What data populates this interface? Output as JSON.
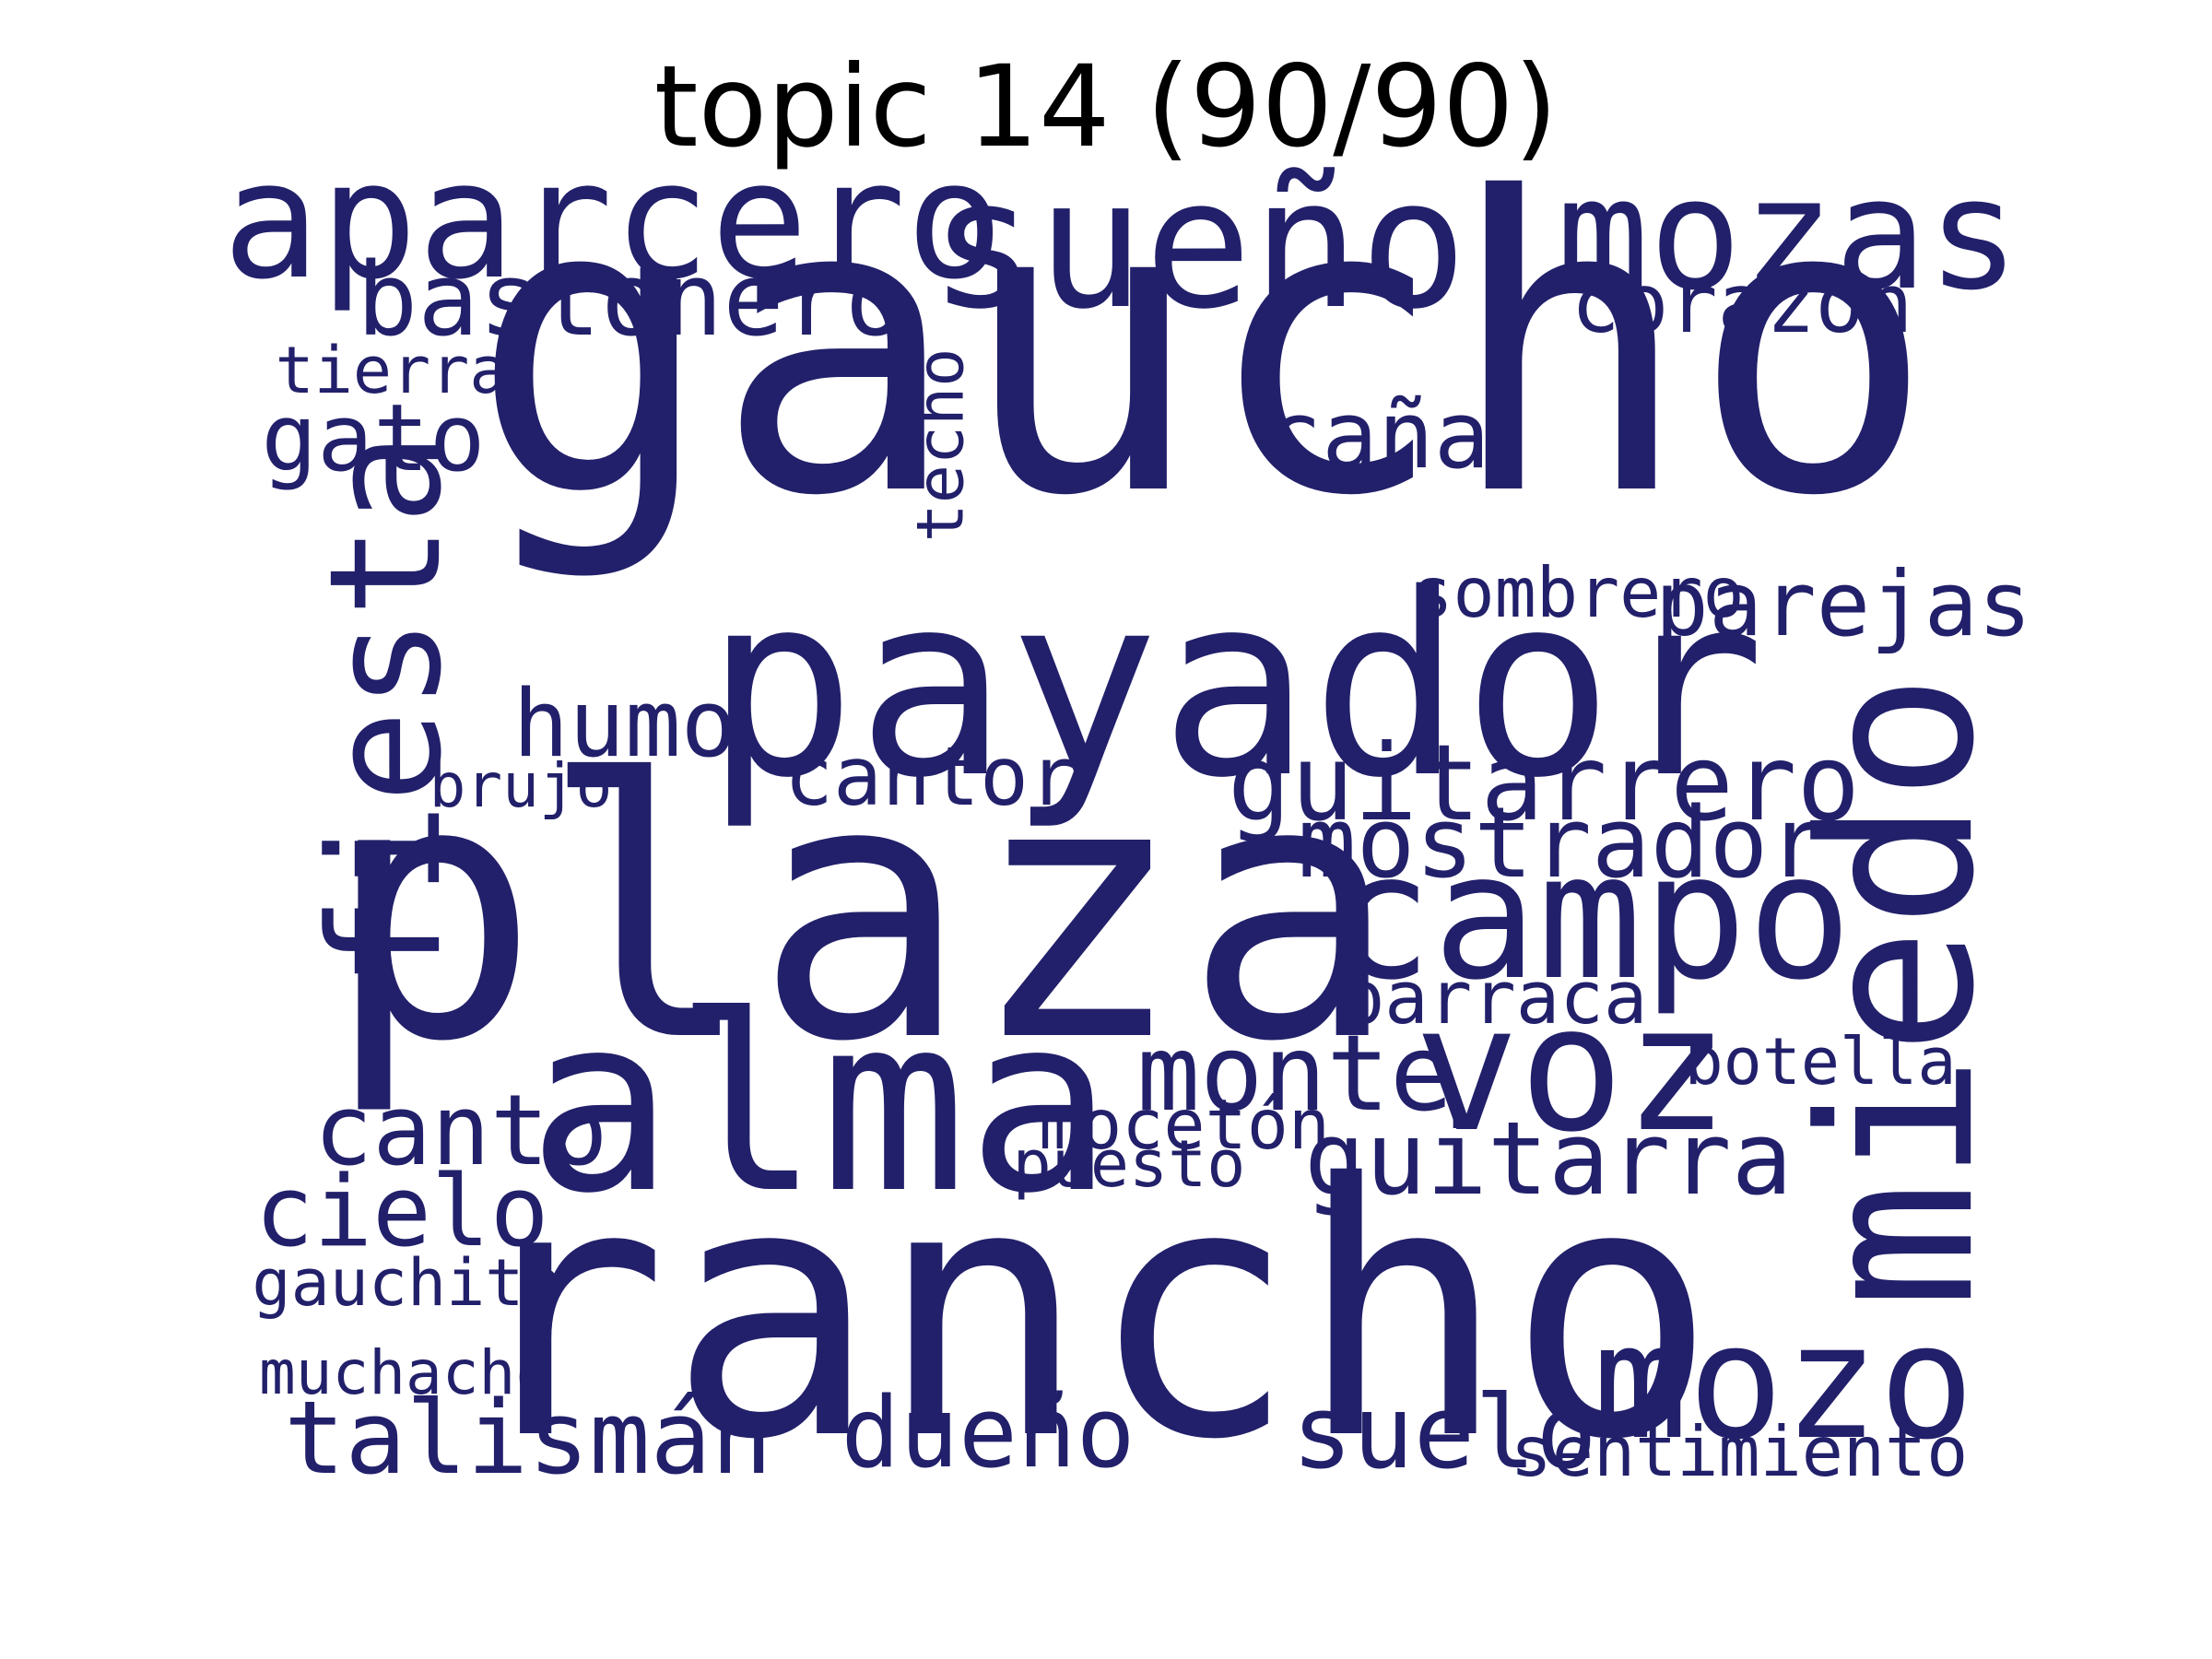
{
  "title": "topic 14 (90/90)",
  "color": "#22206a",
  "words": [
    {
      "text": "gaucho",
      "weight": 1.0
    },
    {
      "text": "plaza",
      "weight": 0.88
    },
    {
      "text": "rancho",
      "weight": 0.86
    },
    {
      "text": "payador",
      "weight": 0.62
    },
    {
      "text": "miedo",
      "weight": 0.52,
      "vertical": true
    },
    {
      "text": "alma",
      "weight": 0.6
    },
    {
      "text": "sueño",
      "weight": 0.44
    },
    {
      "text": "campo",
      "weight": 0.43
    },
    {
      "text": "aparcero",
      "weight": 0.4
    },
    {
      "text": "voz",
      "weight": 0.43
    },
    {
      "text": "mozas",
      "weight": 0.38
    },
    {
      "text": "mozo",
      "weight": 0.39
    },
    {
      "text": "fiesta",
      "weight": 0.38,
      "vertical": true
    },
    {
      "text": "guitarrero",
      "weight": 0.26
    },
    {
      "text": "guitarra",
      "weight": 0.25
    },
    {
      "text": "bastonero",
      "weight": 0.25
    },
    {
      "text": "mostrador",
      "weight": 0.24
    },
    {
      "text": "monte",
      "weight": 0.26
    },
    {
      "text": "talismán",
      "weight": 0.25
    },
    {
      "text": "dueño",
      "weight": 0.24
    },
    {
      "text": "suelo",
      "weight": 0.25
    },
    {
      "text": "cielo",
      "weight": 0.24
    },
    {
      "text": "canto",
      "weight": 0.24
    },
    {
      "text": "humo",
      "weight": 0.23
    },
    {
      "text": "gato",
      "weight": 0.23
    },
    {
      "text": "caña",
      "weight": 0.23
    },
    {
      "text": "parejas",
      "weight": 0.22
    },
    {
      "text": "cantor",
      "weight": 0.2
    },
    {
      "text": "corazón",
      "weight": 0.2
    },
    {
      "text": "barraca",
      "weight": 0.18
    },
    {
      "text": "sombrero",
      "weight": 0.17
    },
    {
      "text": "techo",
      "weight": 0.16,
      "vertical": true
    },
    {
      "text": "sentimiento",
      "weight": 0.17
    },
    {
      "text": "mocetón",
      "weight": 0.17
    },
    {
      "text": "puesto",
      "weight": 0.16
    },
    {
      "text": "tierra",
      "weight": 0.16
    },
    {
      "text": "botella",
      "weight": 0.16
    },
    {
      "text": "gauchito",
      "weight": 0.16
    },
    {
      "text": "muchacho",
      "weight": 0.15
    },
    {
      "text": "brujo",
      "weight": 0.15
    }
  ]
}
